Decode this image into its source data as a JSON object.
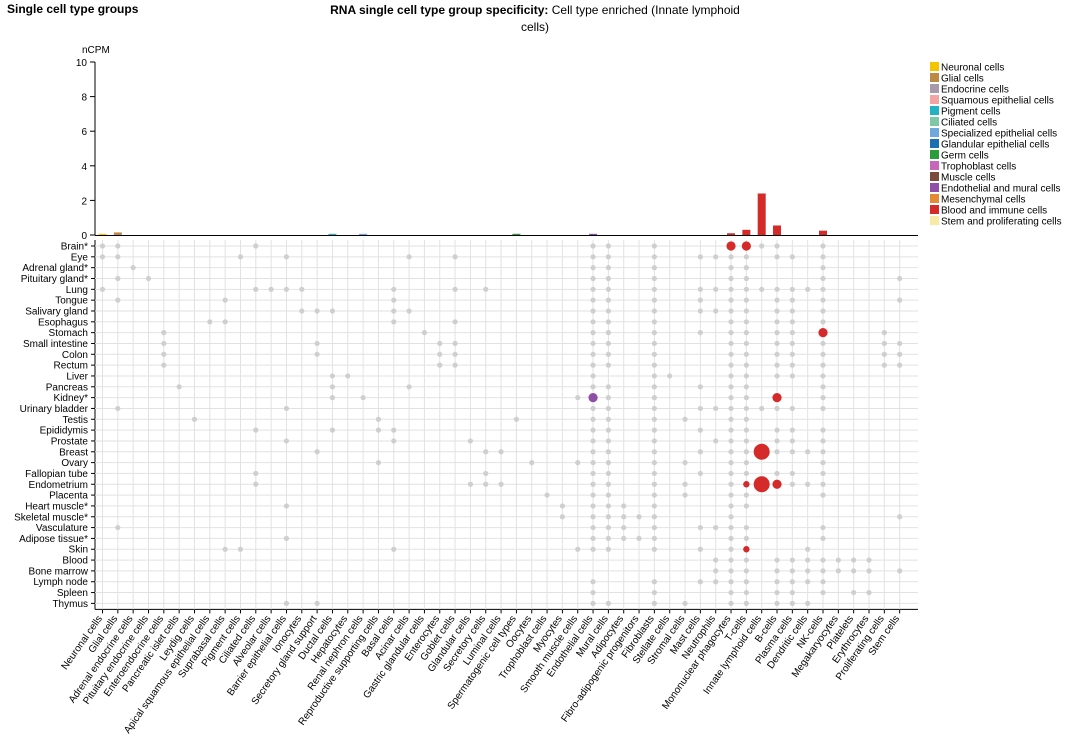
{
  "page_title": "Single cell type groups",
  "heading": {
    "label": "RNA single cell type group specificity:",
    "value": "Cell type enriched (Innate lymphoid cells)"
  },
  "chart_data": {
    "type": "bar+dotmatrix",
    "bar_panel": {
      "ylabel": "nCPM",
      "ylim": [
        0,
        10
      ],
      "yticks": [
        0,
        2,
        4,
        6,
        8,
        10
      ]
    },
    "x_categories": [
      "Neuronal cells",
      "Glial cells",
      "Adrenal endocrine cells",
      "Pituitary endocrine cells",
      "Enteroendocrine cells",
      "Pancreatic islet cells",
      "Leydig cells",
      "Apical squamous epithelial cells",
      "Suprabasal cells",
      "Pigment cells",
      "Ciliated cells",
      "Alveolar cells",
      "Barrier epithelial cells",
      "Ionocytes",
      "Secretory gland support",
      "Ductal cells",
      "Hepatocytes",
      "Renal nephron cells",
      "Reproductive supporting cells",
      "Basal cells",
      "Acinar cells",
      "Gastric glandular cells",
      "Enterocytes",
      "Goblet cells",
      "Glandular cells",
      "Secretory cells",
      "Luminal cells",
      "Spermatogenic cell types",
      "Oocytes",
      "Trophoblast cells",
      "Myocytes",
      "Smooth muscle cells",
      "Endothelial cells",
      "Mural cells",
      "Adipocytes",
      "Fibro-adipogenic progenitors",
      "Fibroblasts",
      "Stellate cells",
      "Stromal cells",
      "Mast cells",
      "Neutrophils",
      "Mononuclear phagocytes",
      "T-cells",
      "Innate lymphoid cells",
      "B-cells",
      "Plasma cells",
      "Dendritic cells",
      "NK-cells",
      "Megakaryocytes",
      "Platelets",
      "Erythrocytes",
      "Proliferating cells",
      "Stem cells"
    ],
    "bar_values": [
      0.05,
      0.15,
      0,
      0,
      0,
      0,
      0,
      0,
      0,
      0,
      0,
      0,
      0,
      0,
      0,
      0.05,
      0,
      0.05,
      0,
      0,
      0,
      0,
      0,
      0,
      0,
      0,
      0,
      0.07,
      0,
      0,
      0,
      0,
      0.06,
      0,
      0,
      0,
      0,
      0,
      0,
      0,
      0,
      0.1,
      0.3,
      2.4,
      0.55,
      0,
      0,
      0.25,
      0,
      0,
      0,
      0,
      0
    ],
    "bar_group": [
      "Neuronal cells",
      "Glial cells",
      null,
      null,
      null,
      null,
      null,
      null,
      null,
      null,
      null,
      null,
      null,
      null,
      null,
      "Pigment cells",
      null,
      "Specialized epithelial cells",
      null,
      null,
      null,
      null,
      null,
      null,
      null,
      null,
      null,
      "Germ cells",
      null,
      null,
      null,
      null,
      "Endothelial and mural cells",
      null,
      null,
      null,
      null,
      null,
      null,
      null,
      null,
      "Blood and immune cells",
      "Blood and immune cells",
      "Blood and immune cells",
      "Blood and immune cells",
      null,
      null,
      "Blood and immune cells",
      null,
      null,
      null,
      null,
      null
    ],
    "tissues": [
      "Brain*",
      "Eye",
      "Adrenal gland*",
      "Pituitary gland*",
      "Lung",
      "Tongue",
      "Salivary gland",
      "Esophagus",
      "Stomach",
      "Small intestine",
      "Colon",
      "Rectum",
      "Liver",
      "Pancreas",
      "Kidney*",
      "Urinary bladder",
      "Testis",
      "Epididymis",
      "Prostate",
      "Breast",
      "Ovary",
      "Fallopian tube",
      "Endometrium",
      "Placenta",
      "Heart muscle*",
      "Skeletal muscle*",
      "Vasculature",
      "Adipose tissue*",
      "Skin",
      "Blood",
      "Bone marrow",
      "Lymph node",
      "Spleen",
      "Thymus"
    ],
    "highlight_points": [
      {
        "tissue": "Brain*",
        "cell": "Mononuclear phagocytes",
        "size": "small",
        "group": "Blood and immune cells"
      },
      {
        "tissue": "Brain*",
        "cell": "T-cells",
        "size": "small",
        "group": "Blood and immune cells"
      },
      {
        "tissue": "Stomach",
        "cell": "NK-cells",
        "size": "small",
        "group": "Blood and immune cells"
      },
      {
        "tissue": "Kidney*",
        "cell": "Endothelial cells",
        "size": "small",
        "group": "Endothelial and mural cells"
      },
      {
        "tissue": "Kidney*",
        "cell": "B-cells",
        "size": "small",
        "group": "Blood and immune cells"
      },
      {
        "tissue": "Breast",
        "cell": "Innate lymphoid cells",
        "size": "large",
        "group": "Blood and immune cells"
      },
      {
        "tissue": "Endometrium",
        "cell": "T-cells",
        "size": "tiny",
        "group": "Blood and immune cells"
      },
      {
        "tissue": "Endometrium",
        "cell": "Innate lymphoid cells",
        "size": "large",
        "group": "Blood and immune cells"
      },
      {
        "tissue": "Endometrium",
        "cell": "B-cells",
        "size": "small",
        "group": "Blood and immune cells"
      },
      {
        "tissue": "Skin",
        "cell": "T-cells",
        "size": "tiny",
        "group": "Blood and immune cells"
      }
    ],
    "gray_points": {
      "Brain*": [
        "Neuronal cells",
        "Glial cells",
        "Ciliated cells",
        "Endothelial cells",
        "Mural cells",
        "Fibroblasts",
        "Innate lymphoid cells",
        "B-cells",
        "NK-cells"
      ],
      "Eye": [
        "Neuronal cells",
        "Glial cells",
        "Pigment cells",
        "Barrier epithelial cells",
        "Acinar cells",
        "Goblet cells",
        "Endothelial cells",
        "Mural cells",
        "Fibroblasts",
        "Mast cells",
        "Neutrophils",
        "Mononuclear phagocytes",
        "T-cells",
        "B-cells",
        "Plasma cells",
        "NK-cells"
      ],
      "Adrenal gland*": [
        "Adrenal endocrine cells",
        "Endothelial cells",
        "Mural cells",
        "Fibroblasts",
        "Mononuclear phagocytes",
        "T-cells",
        "NK-cells"
      ],
      "Pituitary gland*": [
        "Glial cells",
        "Pituitary endocrine cells",
        "Endothelial cells",
        "Mural cells",
        "Fibroblasts",
        "Mononuclear phagocytes",
        "T-cells",
        "NK-cells",
        "Stem cells"
      ],
      "Lung": [
        "Neuronal cells",
        "Ciliated cells",
        "Alveolar cells",
        "Barrier epithelial cells",
        "Ionocytes",
        "Basal cells",
        "Goblet cells",
        "Secretory cells",
        "Endothelial cells",
        "Mural cells",
        "Fibroblasts",
        "Mast cells",
        "Neutrophils",
        "Mononuclear phagocytes",
        "T-cells",
        "Innate lymphoid cells",
        "B-cells",
        "Plasma cells",
        "Dendritic cells",
        "NK-cells"
      ],
      "Tongue": [
        "Glial cells",
        "Suprabasal cells",
        "Basal cells",
        "Endothelial cells",
        "Mural cells",
        "Fibroblasts",
        "Mast cells",
        "Mononuclear phagocytes",
        "T-cells",
        "B-cells",
        "Plasma cells",
        "NK-cells",
        "Stem cells"
      ],
      "Salivary gland": [
        "Ionocytes",
        "Secretory gland support",
        "Ductal cells",
        "Basal cells",
        "Acinar cells",
        "Endothelial cells",
        "Mural cells",
        "Fibroblasts",
        "Mast cells",
        "Neutrophils",
        "Mononuclear phagocytes",
        "T-cells",
        "B-cells",
        "Plasma cells",
        "NK-cells"
      ],
      "Esophagus": [
        "Apical squamous epithelial cells",
        "Suprabasal cells",
        "Basal cells",
        "Goblet cells",
        "Endothelial cells",
        "Mural cells",
        "Fibroblasts",
        "Mononuclear phagocytes",
        "T-cells",
        "B-cells",
        "Plasma cells",
        "NK-cells"
      ],
      "Stomach": [
        "Enteroendocrine cells",
        "Gastric glandular cells",
        "Endothelial cells",
        "Mural cells",
        "Fibroblasts",
        "Mast cells",
        "Mononuclear phagocytes",
        "T-cells",
        "B-cells",
        "Plasma cells",
        "Proliferating cells"
      ],
      "Small intestine": [
        "Enteroendocrine cells",
        "Secretory gland support",
        "Enterocytes",
        "Goblet cells",
        "Endothelial cells",
        "Mural cells",
        "Fibroblasts",
        "Mononuclear phagocytes",
        "T-cells",
        "B-cells",
        "Plasma cells",
        "NK-cells",
        "Proliferating cells",
        "Stem cells"
      ],
      "Colon": [
        "Enteroendocrine cells",
        "Secretory gland support",
        "Enterocytes",
        "Goblet cells",
        "Endothelial cells",
        "Mural cells",
        "Fibroblasts",
        "Mononuclear phagocytes",
        "T-cells",
        "B-cells",
        "Plasma cells",
        "NK-cells",
        "Proliferating cells",
        "Stem cells"
      ],
      "Rectum": [
        "Enteroendocrine cells",
        "Enterocytes",
        "Goblet cells",
        "Endothelial cells",
        "Mural cells",
        "Fibroblasts",
        "Mononuclear phagocytes",
        "T-cells",
        "B-cells",
        "Plasma cells",
        "NK-cells",
        "Proliferating cells",
        "Stem cells"
      ],
      "Liver": [
        "Ductal cells",
        "Hepatocytes",
        "Endothelial cells",
        "Fibroblasts",
        "Stellate cells",
        "Mononuclear phagocytes",
        "T-cells",
        "B-cells",
        "Plasma cells",
        "NK-cells"
      ],
      "Pancreas": [
        "Pancreatic islet cells",
        "Ductal cells",
        "Acinar cells",
        "Endothelial cells",
        "Mural cells",
        "Fibroblasts",
        "Mast cells",
        "Mononuclear phagocytes",
        "T-cells",
        "NK-cells"
      ],
      "Kidney*": [
        "Ductal cells",
        "Renal nephron cells",
        "Smooth muscle cells",
        "Mural cells",
        "Fibroblasts",
        "Mononuclear phagocytes",
        "T-cells",
        "NK-cells"
      ],
      "Urinary bladder": [
        "Glial cells",
        "Barrier epithelial cells",
        "Endothelial cells",
        "Mural cells",
        "Fibroblasts",
        "Mast cells",
        "Neutrophils",
        "Mononuclear phagocytes",
        "T-cells",
        "Innate lymphoid cells",
        "B-cells",
        "Plasma cells",
        "NK-cells"
      ],
      "Testis": [
        "Leydig cells",
        "Reproductive supporting cells",
        "Spermatogenic cell types",
        "Endothelial cells",
        "Mural cells",
        "Fibroblasts",
        "Stromal cells",
        "Mononuclear phagocytes",
        "T-cells"
      ],
      "Epididymis": [
        "Ciliated cells",
        "Ductal cells",
        "Reproductive supporting cells",
        "Basal cells",
        "Endothelial cells",
        "Mural cells",
        "Fibroblasts",
        "Mast cells",
        "Mononuclear phagocytes",
        "T-cells",
        "B-cells",
        "Plasma cells",
        "NK-cells"
      ],
      "Prostate": [
        "Barrier epithelial cells",
        "Basal cells",
        "Glandular cells",
        "Endothelial cells",
        "Mural cells",
        "Fibroblasts",
        "Neutrophils",
        "Mononuclear phagocytes",
        "T-cells",
        "B-cells",
        "Plasma cells",
        "NK-cells"
      ],
      "Breast": [
        "Secretory gland support",
        "Secretory cells",
        "Luminal cells",
        "Endothelial cells",
        "Mural cells",
        "Fibroblasts",
        "Mast cells",
        "Mononuclear phagocytes",
        "T-cells",
        "B-cells",
        "Plasma cells",
        "Dendritic cells",
        "NK-cells"
      ],
      "Ovary": [
        "Reproductive supporting cells",
        "Oocytes",
        "Smooth muscle cells",
        "Endothelial cells",
        "Mural cells",
        "Fibroblasts",
        "Stromal cells",
        "Mononuclear phagocytes",
        "T-cells",
        "NK-cells"
      ],
      "Fallopian tube": [
        "Ciliated cells",
        "Secretory cells",
        "Endothelial cells",
        "Mural cells",
        "Fibroblasts",
        "Mast cells",
        "Mononuclear phagocytes",
        "T-cells",
        "B-cells",
        "Plasma cells",
        "NK-cells"
      ],
      "Endometrium": [
        "Ciliated cells",
        "Glandular cells",
        "Secretory cells",
        "Luminal cells",
        "Endothelial cells",
        "Mural cells",
        "Fibroblasts",
        "Stromal cells",
        "Mononuclear phagocytes",
        "Plasma cells",
        "Dendritic cells",
        "NK-cells"
      ],
      "Placenta": [
        "Trophoblast cells",
        "Endothelial cells",
        "Mural cells",
        "Fibroblasts",
        "Stromal cells",
        "Mononuclear phagocytes",
        "T-cells",
        "NK-cells"
      ],
      "Heart muscle*": [
        "Barrier epithelial cells",
        "Myocytes",
        "Endothelial cells",
        "Mural cells",
        "Adipocytes",
        "Fibroblasts",
        "Mononuclear phagocytes",
        "T-cells"
      ],
      "Skeletal muscle*": [
        "Myocytes",
        "Endothelial cells",
        "Mural cells",
        "Adipocytes",
        "Fibro-adipogenic progenitors",
        "Fibroblasts",
        "Mononuclear phagocytes",
        "Stem cells"
      ],
      "Vasculature": [
        "Glial cells",
        "Endothelial cells",
        "Mural cells",
        "Adipocytes",
        "Fibroblasts",
        "Mast cells",
        "Neutrophils",
        "Mononuclear phagocytes",
        "T-cells",
        "NK-cells"
      ],
      "Adipose tissue*": [
        "Barrier epithelial cells",
        "Endothelial cells",
        "Mural cells",
        "Adipocytes",
        "Fibro-adipogenic progenitors",
        "Fibroblasts",
        "Mononuclear phagocytes",
        "T-cells",
        "NK-cells"
      ],
      "Skin": [
        "Suprabasal cells",
        "Pigment cells",
        "Basal cells",
        "Smooth muscle cells",
        "Endothelial cells",
        "Mural cells",
        "Fibroblasts",
        "Mast cells",
        "Mononuclear phagocytes",
        "Dendritic cells"
      ],
      "Blood": [
        "Neutrophils",
        "Mononuclear phagocytes",
        "T-cells",
        "B-cells",
        "Plasma cells",
        "Dendritic cells",
        "NK-cells",
        "Megakaryocytes",
        "Platelets",
        "Erythrocytes"
      ],
      "Bone marrow": [
        "Neutrophils",
        "Mononuclear phagocytes",
        "T-cells",
        "B-cells",
        "Plasma cells",
        "Dendritic cells",
        "NK-cells",
        "Megakaryocytes",
        "Platelets",
        "Erythrocytes",
        "Stem cells"
      ],
      "Lymph node": [
        "Endothelial cells",
        "Fibroblasts",
        "Mast cells",
        "Neutrophils",
        "Mononuclear phagocytes",
        "T-cells",
        "B-cells",
        "Plasma cells",
        "Dendritic cells",
        "NK-cells"
      ],
      "Spleen": [
        "Endothelial cells",
        "Fibroblasts",
        "Mononuclear phagocytes",
        "T-cells",
        "B-cells",
        "Plasma cells",
        "NK-cells",
        "Platelets",
        "Erythrocytes"
      ],
      "Thymus": [
        "Barrier epithelial cells",
        "Secretory gland support",
        "Endothelial cells",
        "Mural cells",
        "Fibroblasts",
        "Stromal cells",
        "Mononuclear phagocytes",
        "T-cells",
        "B-cells",
        "Plasma cells",
        "Dendritic cells"
      ]
    },
    "legend": {
      "placement": "top-right",
      "items": [
        {
          "label": "Neuronal cells",
          "color": "#f5c400"
        },
        {
          "label": "Glial cells",
          "color": "#bd8a45"
        },
        {
          "label": "Endocrine cells",
          "color": "#a99aab"
        },
        {
          "label": "Squamous epithelial cells",
          "color": "#f4a3a3"
        },
        {
          "label": "Pigment cells",
          "color": "#23b1c4"
        },
        {
          "label": "Ciliated cells",
          "color": "#7fc7a6"
        },
        {
          "label": "Specialized epithelial cells",
          "color": "#6fa8dc"
        },
        {
          "label": "Glandular epithelial cells",
          "color": "#1c6fb0"
        },
        {
          "label": "Germ cells",
          "color": "#2c9b3a"
        },
        {
          "label": "Trophoblast cells",
          "color": "#c767b9"
        },
        {
          "label": "Muscle cells",
          "color": "#7a4b3a"
        },
        {
          "label": "Endothelial and mural cells",
          "color": "#8f4fa8"
        },
        {
          "label": "Mesenchymal cells",
          "color": "#e48a34"
        },
        {
          "label": "Blood and immune cells",
          "color": "#d42a2a"
        },
        {
          "label": "Stem and proliferating cells",
          "color": "#f7e9a6"
        }
      ]
    }
  }
}
